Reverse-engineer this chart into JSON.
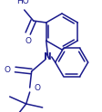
{
  "background": "#ffffff",
  "line_color": "#1a1a8c",
  "line_width": 1.1,
  "font_size": 6.5,
  "figsize": [
    1.12,
    1.24
  ],
  "dpi": 100,
  "xlim": [
    0,
    112
  ],
  "ylim": [
    0,
    124
  ]
}
